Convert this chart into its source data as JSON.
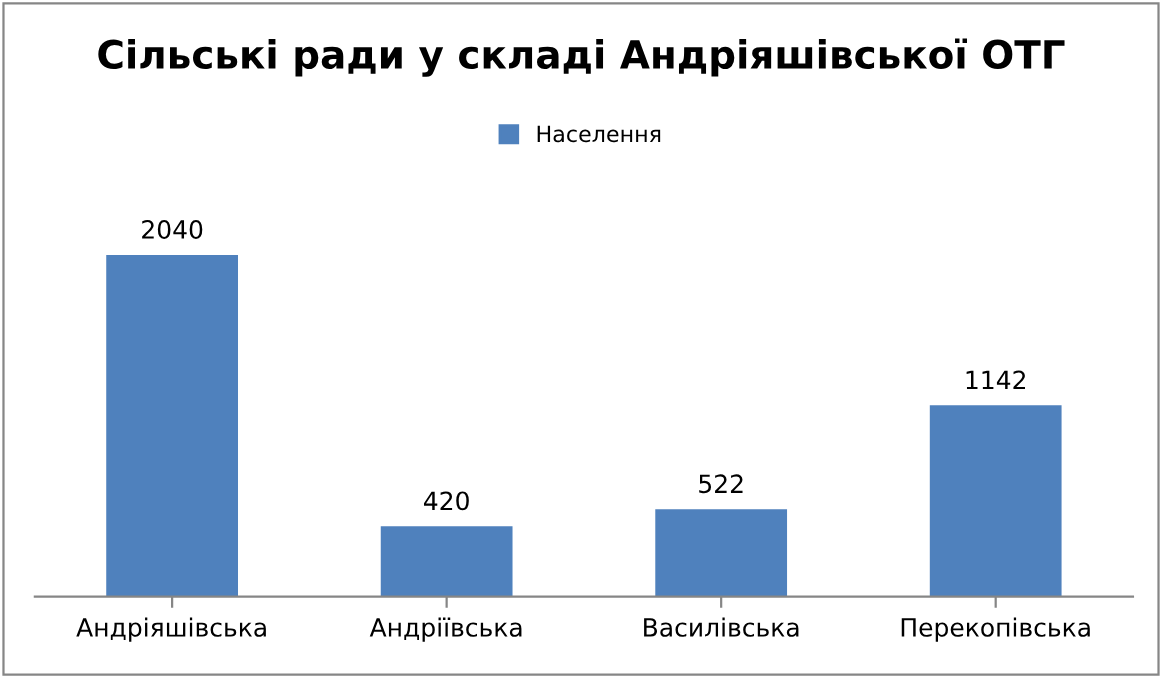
{
  "chart_data": {
    "type": "bar",
    "title": "Сільські ради у складі Андріяшівської ОТГ",
    "categories": [
      "Андріяшівська",
      "Андріївська",
      "Василівська",
      "Перекопівська"
    ],
    "series": [
      {
        "name": "Населення",
        "color": "#4f81bd",
        "values": [
          2040,
          420,
          522,
          1142
        ]
      }
    ],
    "data_labels": true,
    "legend": "top",
    "grid": false
  }
}
